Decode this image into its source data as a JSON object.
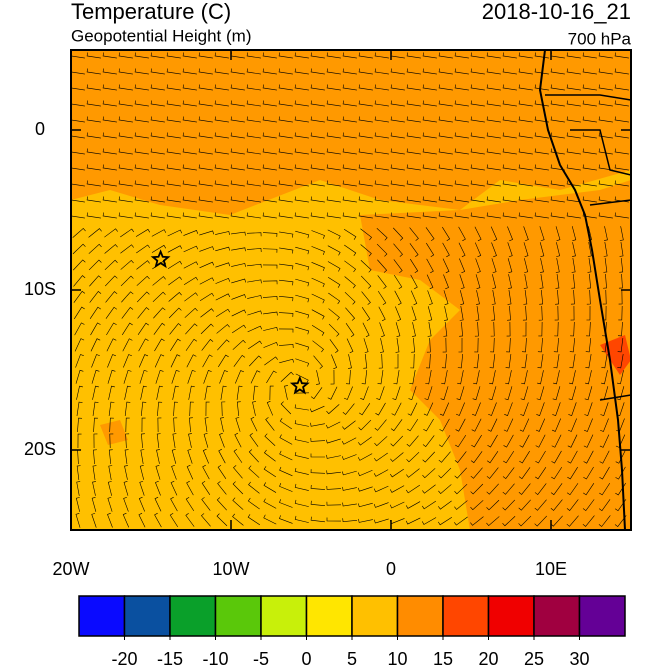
{
  "title": "Temperature (C)",
  "subtitle": "Geopotential Height (m)",
  "date": "2018-10-16_21",
  "level": "700 hPa",
  "map": {
    "xlim": [
      -20,
      15
    ],
    "ylim": [
      -25,
      5
    ],
    "xticks": [
      {
        "value": -20,
        "label": "20W"
      },
      {
        "value": -10,
        "label": "10W"
      },
      0,
      {
        "value": 10,
        "label": "10E"
      }
    ],
    "yticks": [
      0,
      {
        "value": -10,
        "label": "10S"
      },
      {
        "value": -20,
        "label": "20S"
      }
    ],
    "markers": [
      {
        "lon": -14.4,
        "lat": -8.1
      },
      {
        "lon": -5.7,
        "lat": -16.0
      }
    ]
  },
  "colorbar": {
    "colors": [
      "#0a0aff",
      "#0a50a0",
      "#0aa02a",
      "#5ac80a",
      "#c8f00a",
      "#ffe600",
      "#ffc000",
      "#ff8c00",
      "#ff4600",
      "#f00000",
      "#a00040",
      "#640096"
    ],
    "ticks": [
      -20,
      -15,
      -10,
      -5,
      0,
      5,
      10,
      15,
      20,
      25,
      30
    ]
  }
}
